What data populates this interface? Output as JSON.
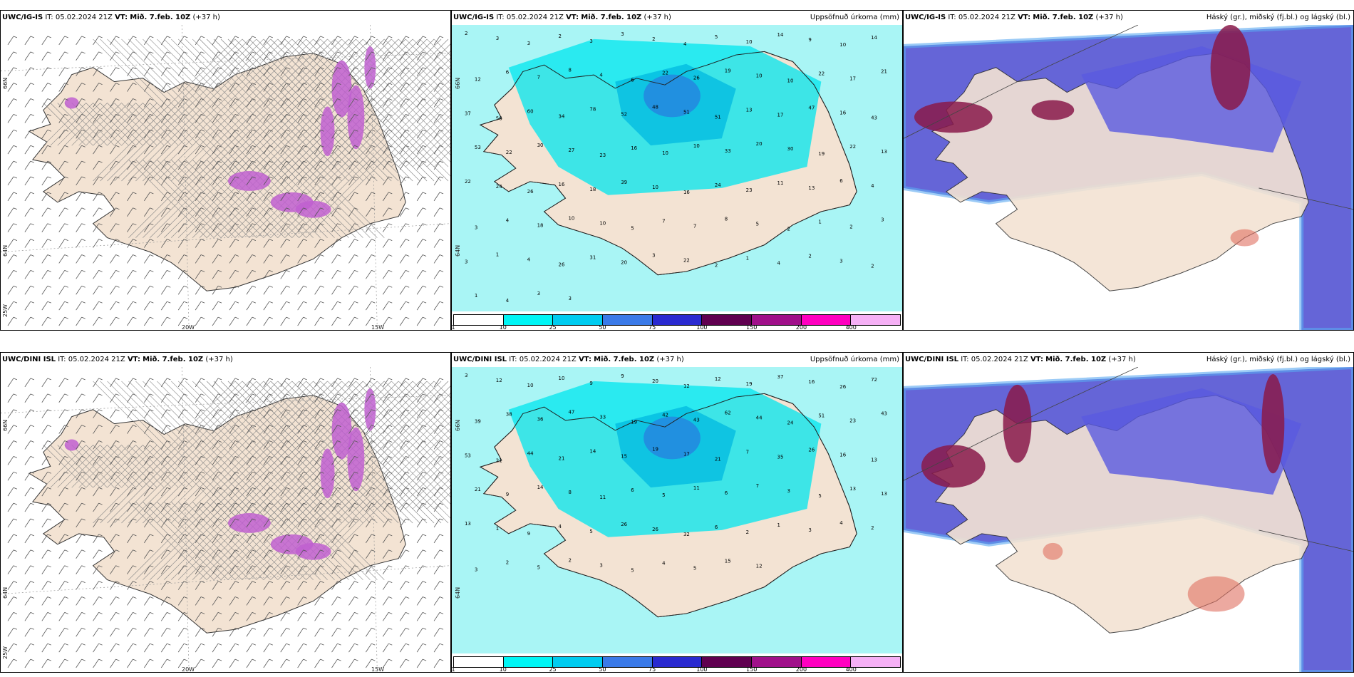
{
  "colors": {
    "land": "#f3e3d3",
    "sea": "#ffffff",
    "precip_light": "#a9f5f5",
    "precip_mid": "#00e5ee",
    "precip_dark": "#00b8e0",
    "cloud_high": "#4a4ad0",
    "cloud_mid": "#5a5ae0",
    "cloud_low": "#8a1a4a",
    "snow_purple": "#c060d0"
  },
  "rows": [
    {
      "wind": {
        "model": "UWC/IG-IS",
        "it_label": "IT:",
        "it_value": "05.02.2024 21Z",
        "vt_label": "VT:",
        "vt_value": "Mið. 7.feb. 10Z",
        "lead": "(+37 h)",
        "lat_labels": [
          "66N",
          "64N",
          "25W"
        ],
        "lon_labels": [
          "20W",
          "15W"
        ]
      },
      "precip": {
        "model": "UWC/IG-IS",
        "it_label": "IT:",
        "it_value": "05.02.2024 21Z",
        "vt_label": "VT:",
        "vt_value": "Mið. 7.feb. 10Z",
        "lead": "(+37 h)",
        "right_title": "Uppsöfnuð úrkoma (mm)",
        "lat_labels": [
          "66N",
          "64N"
        ],
        "values": [
          "2",
          "3",
          "3",
          "2",
          "3",
          "3",
          "2",
          "4",
          "5",
          "10",
          "14",
          "9",
          "10",
          "14",
          "12",
          "6",
          "7",
          "8",
          "4",
          "6",
          "22",
          "26",
          "19",
          "10",
          "10",
          "22",
          "17",
          "21",
          "37",
          "56",
          "60",
          "34",
          "78",
          "52",
          "48",
          "51",
          "51",
          "13",
          "17",
          "47",
          "16",
          "43",
          "53",
          "22",
          "30",
          "27",
          "23",
          "16",
          "10",
          "10",
          "33",
          "20",
          "30",
          "19",
          "22",
          "13",
          "22",
          "24",
          "26",
          "16",
          "18",
          "39",
          "10",
          "16",
          "24",
          "23",
          "11",
          "13",
          "6",
          "4",
          "3",
          "4",
          "18",
          "10",
          "10",
          "5",
          "7",
          "7",
          "8",
          "5",
          "2",
          "1",
          "2",
          "3",
          "3",
          "1",
          "4",
          "26",
          "31",
          "20",
          "3",
          "22",
          "2",
          "1",
          "4",
          "2",
          "3",
          "2",
          "1",
          "4",
          "3",
          "3"
        ]
      },
      "cloud": {
        "model": "UWC/IG-IS",
        "it_label": "IT:",
        "it_value": "05.02.2024 21Z",
        "vt_label": "VT:",
        "vt_value": "Mið. 7.feb. 10Z",
        "lead": "(+37 h)",
        "right_title": "Háský (gr.), miðský (fj.bl.) og lágský (bl.)"
      }
    },
    {
      "wind": {
        "model": "UWC/DINI ISL",
        "it_label": "IT:",
        "it_value": "05.02.2024 21Z",
        "vt_label": "VT:",
        "vt_value": "Mið. 7.feb. 10Z",
        "lead": "(+37 h)",
        "lat_labels": [
          "66N",
          "64N",
          "25W"
        ],
        "lon_labels": [
          "20W",
          "15W"
        ]
      },
      "precip": {
        "model": "UWC/DINI ISL",
        "it_label": "IT:",
        "it_value": "05.02.2024 21Z",
        "vt_label": "VT:",
        "vt_value": "Mið. 7.feb. 10Z",
        "lead": "(+37 h)",
        "right_title": "Uppsöfnuð úrkoma (mm)",
        "lat_labels": [
          "66N",
          "64N"
        ],
        "values": [
          "3",
          "12",
          "10",
          "10",
          "9",
          "9",
          "20",
          "12",
          "12",
          "19",
          "37",
          "16",
          "26",
          "72",
          "39",
          "38",
          "36",
          "47",
          "33",
          "19",
          "42",
          "43",
          "62",
          "44",
          "24",
          "51",
          "23",
          "43",
          "53",
          "21",
          "44",
          "21",
          "14",
          "15",
          "19",
          "17",
          "21",
          "7",
          "35",
          "26",
          "16",
          "13",
          "21",
          "9",
          "14",
          "8",
          "11",
          "6",
          "5",
          "11",
          "6",
          "7",
          "3",
          "5",
          "13",
          "13",
          "13",
          "1",
          "9",
          "4",
          "5",
          "26",
          "26",
          "32",
          "6",
          "2",
          "1",
          "3",
          "4",
          "2",
          "3",
          "2",
          "5",
          "2",
          "3",
          "5",
          "4",
          "5",
          "15",
          "12"
        ]
      },
      "cloud": {
        "model": "UWC/DINI ISL",
        "it_label": "IT:",
        "it_value": "05.02.2024 21Z",
        "vt_label": "VT:",
        "vt_value": "Mið. 7.feb. 10Z",
        "lead": "(+37 h)",
        "right_title": "Háský (gr.), miðský (fj.bl.) og lágský (bl.)"
      }
    }
  ],
  "colorbar": {
    "ticks": [
      "1",
      "10",
      "25",
      "50",
      "75",
      "100",
      "150",
      "200",
      "400"
    ],
    "colors": [
      "#ffffff",
      "#00f5f5",
      "#00ccf0",
      "#3a7ae8",
      "#2a2ad0",
      "#600050",
      "#a0108a",
      "#ff00c0",
      "#f5b0f5"
    ]
  }
}
